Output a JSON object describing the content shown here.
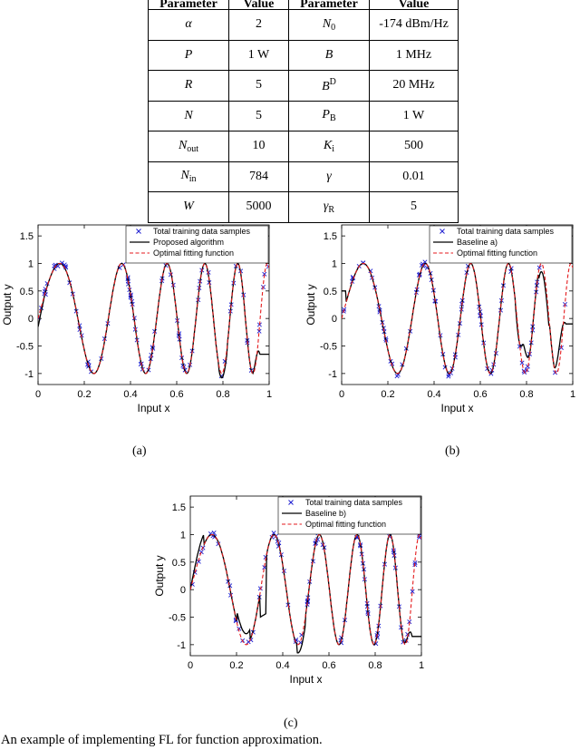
{
  "table": {
    "headers": [
      "Parameter",
      "Value",
      "Parameter",
      "Value"
    ],
    "rows": [
      {
        "p1": "α",
        "p1_sub": "",
        "p1_sup": "",
        "v1": "2",
        "p2": "N",
        "p2_sub": "0",
        "p2_sup": "",
        "v2": "-174 dBm/Hz"
      },
      {
        "p1": "P",
        "p1_sub": "",
        "p1_sup": "",
        "v1": "1 W",
        "p2": "B",
        "p2_sub": "",
        "p2_sup": "",
        "v2": "1 MHz"
      },
      {
        "p1": "R",
        "p1_sub": "",
        "p1_sup": "",
        "v1": "5",
        "p2": "B",
        "p2_sub": "",
        "p2_sup": "D",
        "v2": "20 MHz"
      },
      {
        "p1": "N",
        "p1_sub": "",
        "p1_sup": "",
        "v1": "5",
        "p2": "P",
        "p2_sub": "B",
        "p2_sup": "",
        "v2": "1 W"
      },
      {
        "p1": "N",
        "p1_sub": "out",
        "p1_sup": "",
        "v1": "10",
        "p2": "K",
        "p2_sub": "i",
        "p2_sup": "",
        "v2": "500"
      },
      {
        "p1": "N",
        "p1_sub": "in",
        "p1_sup": "",
        "v1": "784",
        "p2": "γ",
        "p2_sub": "",
        "p2_sup": "",
        "v2": "0.01"
      },
      {
        "p1": "W",
        "p1_sub": "",
        "p1_sup": "",
        "v1": "5000",
        "p2": "γ",
        "p2_sub": "R",
        "p2_sup": "",
        "v2": "5"
      }
    ]
  },
  "chart_data": [
    {
      "type": "line",
      "panel_label": "(a)",
      "xlabel": "Input x",
      "ylabel": "Output y",
      "xlim": [
        0,
        1
      ],
      "ylim": [
        -1.2,
        1.7
      ],
      "x_ticks": [
        "0",
        "0.2",
        "0.4",
        "0.6",
        "0.8",
        "1"
      ],
      "y_ticks": [
        "1.5",
        "1",
        "0.5",
        "0",
        "-0.5",
        "-1"
      ],
      "legend": [
        "Total training data samples",
        "Proposed algorithm",
        "Optimal fitting function"
      ],
      "legend_position": "top-right",
      "series": [
        {
          "name": "Total training data samples",
          "style": "scatter",
          "color": "#1f1fd0"
        },
        {
          "name": "Proposed algorithm",
          "style": "line",
          "color": "#000000"
        },
        {
          "name": "Optimal fitting function",
          "style": "dashed",
          "color": "#e41a1c"
        }
      ]
    },
    {
      "type": "line",
      "panel_label": "(b)",
      "xlabel": "Input x",
      "ylabel": "Output y",
      "xlim": [
        0,
        1
      ],
      "ylim": [
        -1.2,
        1.7
      ],
      "x_ticks": [
        "0",
        "0.2",
        "0.4",
        "0.6",
        "0.8",
        "1"
      ],
      "y_ticks": [
        "1.5",
        "1",
        "0.5",
        "0",
        "-0.5",
        "-1"
      ],
      "legend": [
        "Total training data samples",
        "Baseline a)",
        "Optimal fitting function"
      ],
      "legend_position": "top-right",
      "series": [
        {
          "name": "Total training data samples",
          "style": "scatter",
          "color": "#1f1fd0"
        },
        {
          "name": "Baseline a)",
          "style": "line",
          "color": "#000000"
        },
        {
          "name": "Optimal fitting function",
          "style": "dashed",
          "color": "#e41a1c"
        }
      ]
    },
    {
      "type": "line",
      "panel_label": "(c)",
      "xlabel": "Input x",
      "ylabel": "Output y",
      "xlim": [
        0,
        1
      ],
      "ylim": [
        -1.2,
        1.7
      ],
      "x_ticks": [
        "0",
        "0.2",
        "0.4",
        "0.6",
        "0.8",
        "1"
      ],
      "y_ticks": [
        "1.5",
        "1",
        "0.5",
        "0",
        "-0.5",
        "-1"
      ],
      "legend": [
        "Total training data samples",
        "Baseline b)",
        "Optimal fitting function"
      ],
      "legend_position": "top-right",
      "series": [
        {
          "name": "Total training data samples",
          "style": "scatter",
          "color": "#1f1fd0"
        },
        {
          "name": "Baseline b)",
          "style": "line",
          "color": "#000000"
        },
        {
          "name": "Optimal fitting function",
          "style": "dashed",
          "color": "#e41a1c"
        }
      ]
    }
  ],
  "figure_caption": "An example of implementing FL for function approximation."
}
